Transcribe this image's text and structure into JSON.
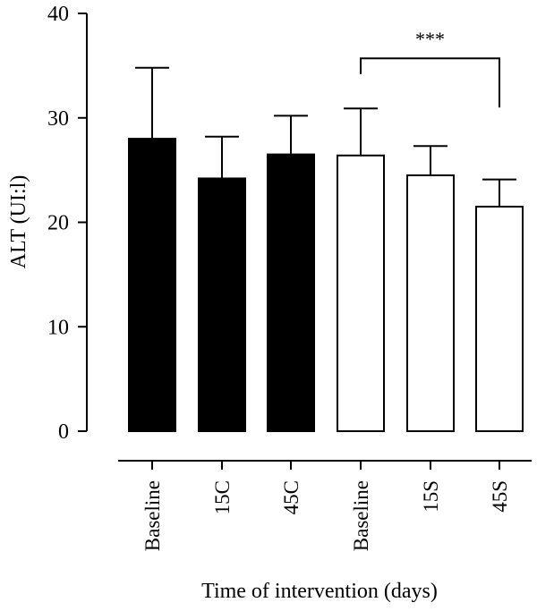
{
  "chart_data": {
    "type": "bar",
    "title": "",
    "xlabel": "Time of intervention (days)",
    "ylabel": "ALT (UI:l)",
    "ylim": [
      0,
      40
    ],
    "yticks": [
      0,
      10,
      20,
      30,
      40
    ],
    "grid": false,
    "categories": [
      "Baseline",
      "15C",
      "45C",
      "Baseline",
      "15S",
      "45S"
    ],
    "values": [
      28.0,
      24.2,
      26.5,
      26.4,
      24.5,
      21.5
    ],
    "errors": [
      6.8,
      4.0,
      3.7,
      4.5,
      2.8,
      2.6
    ],
    "fills": [
      "#000000",
      "#000000",
      "#000000",
      "#ffffff",
      "#ffffff",
      "#ffffff"
    ],
    "significance": {
      "label": "***",
      "from_index": 3,
      "to_index": 5
    }
  }
}
